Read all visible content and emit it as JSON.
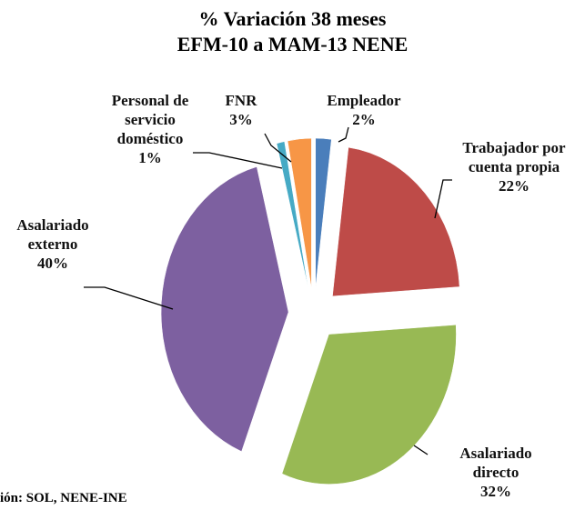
{
  "chart_data": {
    "type": "pie",
    "title": "% Variación 38 meses",
    "subtitle": "EFM-10 a MAM-13 NENE",
    "categories": [
      "Empleador",
      "Trabajador por cuenta propia",
      "Asalariado directo",
      "Asalariado externo",
      "Personal de servicio doméstico",
      "FNR"
    ],
    "values": [
      2,
      22,
      32,
      40,
      1,
      3
    ],
    "value_labels": [
      "2%",
      "22%",
      "32%",
      "40%",
      "1%",
      "3%"
    ],
    "colors": [
      "#4a7ebb",
      "#be4b48",
      "#98b954",
      "#7d60a0",
      "#46aac5",
      "#f79646"
    ],
    "source": "ión: SOL, NENE-INE"
  }
}
